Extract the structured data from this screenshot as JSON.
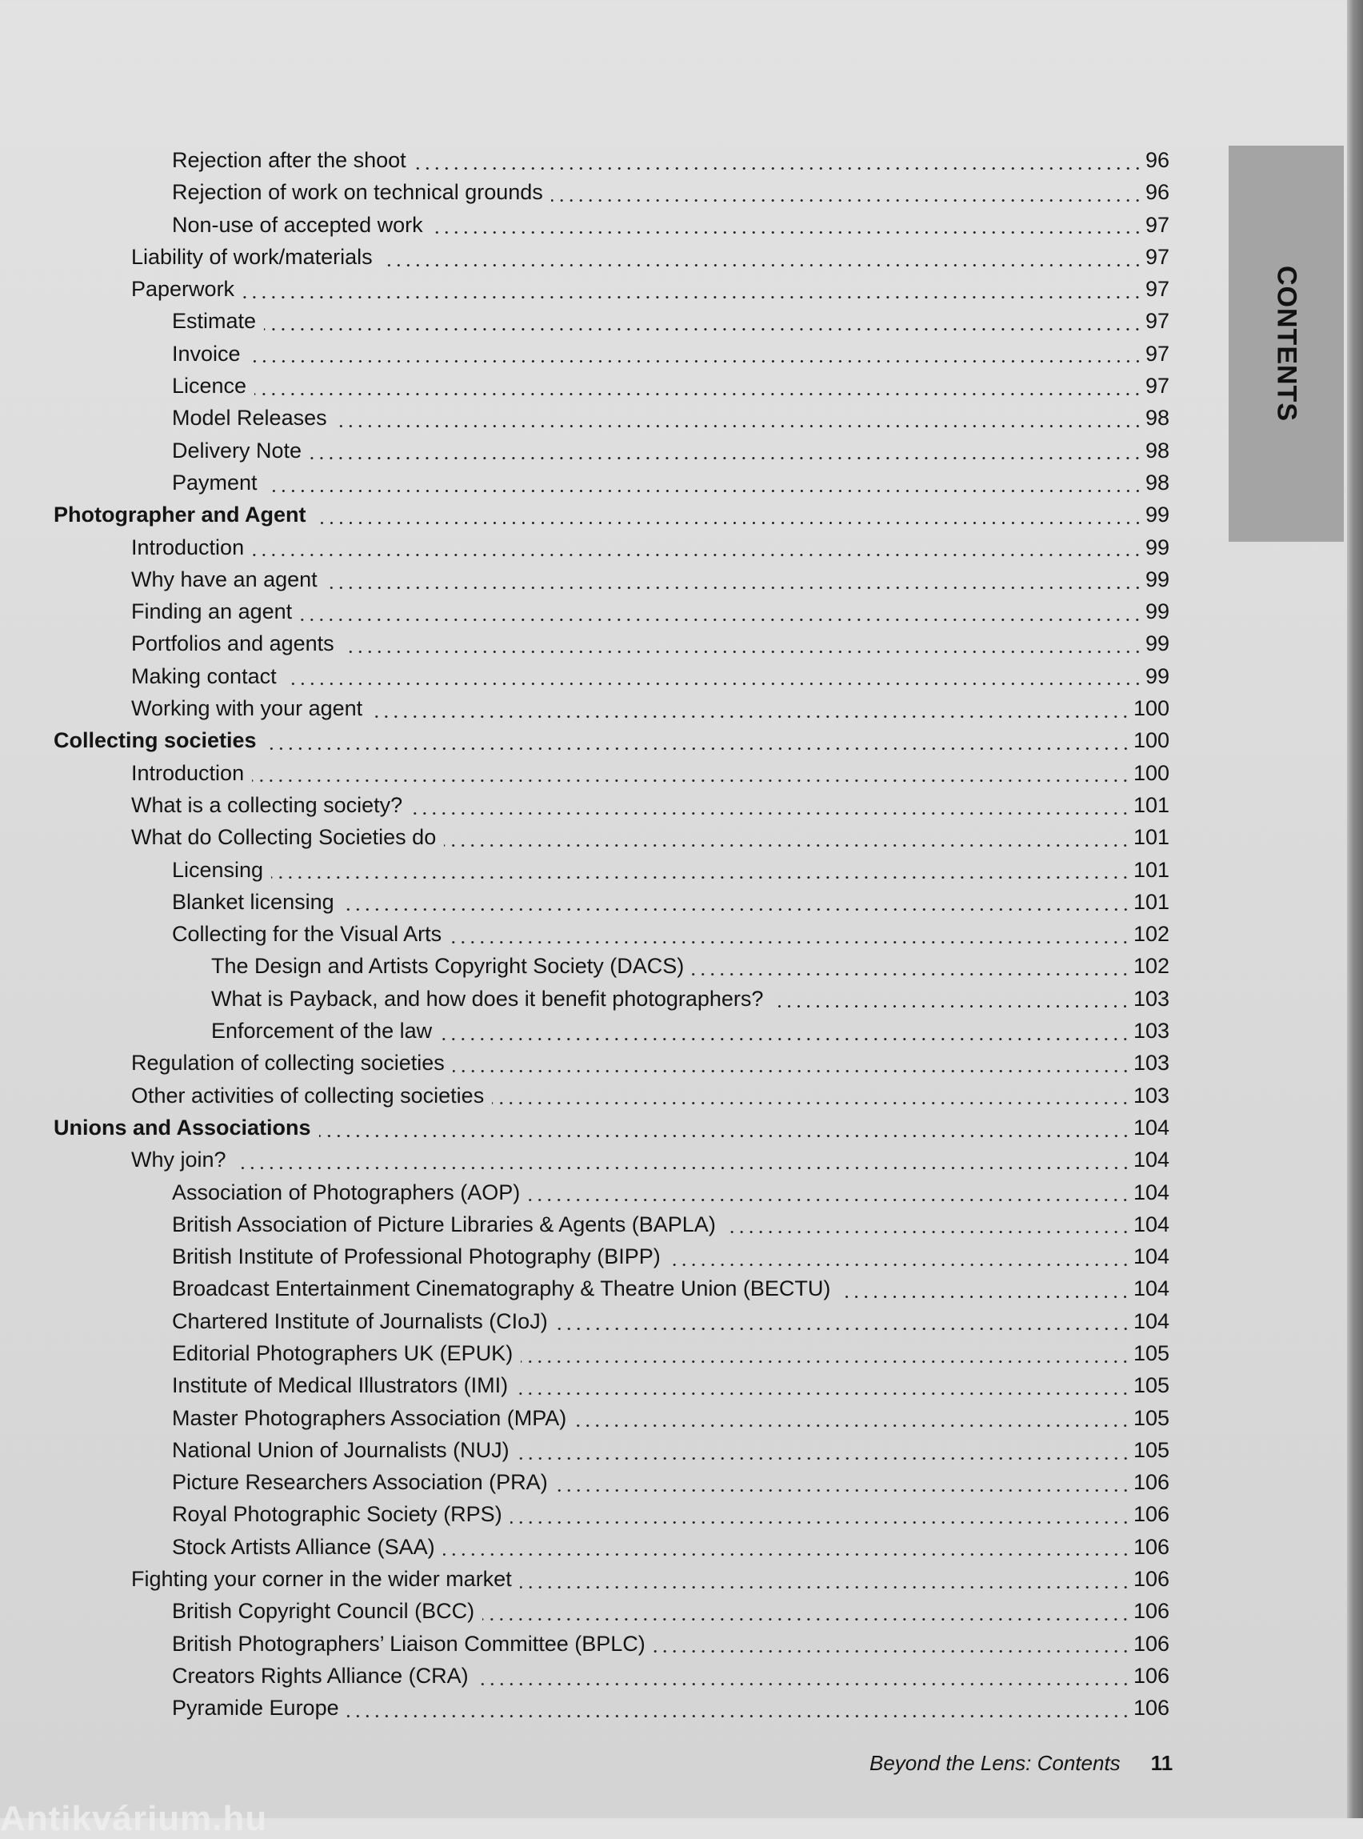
{
  "side_tab": "CONTENTS",
  "entries": [
    {
      "level": 3,
      "title": "Rejection after the shoot",
      "page": "96"
    },
    {
      "level": 3,
      "title": "Rejection of work on technical grounds",
      "page": "96"
    },
    {
      "level": 3,
      "title": "Non-use of accepted work",
      "page": "97"
    },
    {
      "level": 2,
      "title": "Liability of work/materials",
      "page": "97"
    },
    {
      "level": 2,
      "title": "Paperwork",
      "page": "97"
    },
    {
      "level": 3,
      "title": "Estimate",
      "page": "97"
    },
    {
      "level": 3,
      "title": "Invoice",
      "page": "97"
    },
    {
      "level": 3,
      "title": "Licence",
      "page": "97"
    },
    {
      "level": 3,
      "title": "Model Releases",
      "page": "98"
    },
    {
      "level": 3,
      "title": "Delivery Note",
      "page": "98"
    },
    {
      "level": 3,
      "title": "Payment",
      "page": "98"
    },
    {
      "level": 1,
      "title": "Photographer and Agent",
      "page": "99"
    },
    {
      "level": 2,
      "title": "Introduction",
      "page": "99"
    },
    {
      "level": 2,
      "title": "Why have an agent",
      "page": "99"
    },
    {
      "level": 2,
      "title": "Finding an agent",
      "page": "99"
    },
    {
      "level": 2,
      "title": "Portfolios and agents",
      "page": "99"
    },
    {
      "level": 2,
      "title": "Making contact",
      "page": "99"
    },
    {
      "level": 2,
      "title": "Working with your agent",
      "page": "100"
    },
    {
      "level": 1,
      "title": "Collecting societies",
      "page": "100"
    },
    {
      "level": 2,
      "title": "Introduction",
      "page": "100"
    },
    {
      "level": 2,
      "title": "What is a collecting society?",
      "page": "101"
    },
    {
      "level": 2,
      "title": "What do Collecting Societies do",
      "page": "101"
    },
    {
      "level": 3,
      "title": "Licensing",
      "page": "101"
    },
    {
      "level": 3,
      "title": "Blanket licensing",
      "page": "101"
    },
    {
      "level": 3,
      "title": "Collecting for the Visual Arts",
      "page": "102"
    },
    {
      "level": 4,
      "title": "The Design and Artists Copyright Society (DACS)",
      "page": "102"
    },
    {
      "level": 4,
      "title": "What is Payback, and how does it benefit photographers?",
      "page": "103"
    },
    {
      "level": 4,
      "title": "Enforcement of the law",
      "page": "103"
    },
    {
      "level": 2,
      "title": "Regulation of collecting societies",
      "page": "103"
    },
    {
      "level": 2,
      "title": "Other activities of collecting societies",
      "page": "103"
    },
    {
      "level": 1,
      "title": "Unions and Associations",
      "page": "104"
    },
    {
      "level": 2,
      "title": "Why join?",
      "page": "104"
    },
    {
      "level": 3,
      "title": "Association of Photographers (AOP)",
      "page": "104"
    },
    {
      "level": 3,
      "title": "British Association of Picture Libraries & Agents (BAPLA)",
      "page": "104"
    },
    {
      "level": 3,
      "title": "British Institute of Professional Photography (BIPP)",
      "page": "104"
    },
    {
      "level": 3,
      "title": "Broadcast Entertainment Cinematography & Theatre Union (BECTU)",
      "page": "104"
    },
    {
      "level": 3,
      "title": "Chartered Institute of Journalists (CIoJ)",
      "page": "104"
    },
    {
      "level": 3,
      "title": "Editorial Photographers UK (EPUK)",
      "page": "105"
    },
    {
      "level": 3,
      "title": "Institute of Medical Illustrators (IMI)",
      "page": "105"
    },
    {
      "level": 3,
      "title": "Master Photographers Association (MPA)",
      "page": "105"
    },
    {
      "level": 3,
      "title": "National Union of Journalists (NUJ)",
      "page": "105"
    },
    {
      "level": 3,
      "title": "Picture Researchers Association (PRA)",
      "page": "106"
    },
    {
      "level": 3,
      "title": "Royal Photographic Society (RPS)",
      "page": "106"
    },
    {
      "level": 3,
      "title": "Stock Artists Alliance (SAA)",
      "page": "106"
    },
    {
      "level": 2,
      "title": "Fighting your corner in the wider market",
      "page": "106"
    },
    {
      "level": 3,
      "title": "British Copyright Council (BCC)",
      "page": "106"
    },
    {
      "level": 3,
      "title": "British Photographers’ Liaison Committee (BPLC)",
      "page": "106"
    },
    {
      "level": 3,
      "title": "Creators Rights Alliance (CRA)",
      "page": "106"
    },
    {
      "level": 3,
      "title": "Pyramide Europe",
      "page": "106"
    }
  ],
  "footer": {
    "title": "Beyond the Lens: Contents",
    "page_number": "11"
  },
  "watermark": "Antikvárium.hu"
}
